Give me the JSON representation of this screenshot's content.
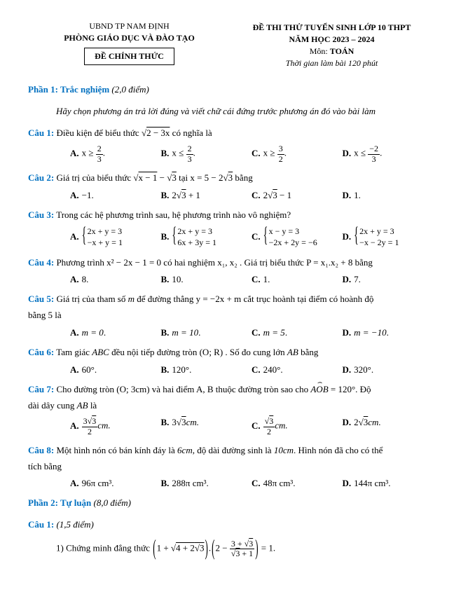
{
  "header": {
    "left1": "UBND TP NAM ĐỊNH",
    "left2": "PHÒNG GIÁO DỤC VÀ ĐÀO TẠO",
    "box": "ĐỀ CHÍNH THỨC",
    "right1": "ĐỀ THI THỬ TUYỂN SINH LỚP 10 THPT",
    "right2": "NĂM HỌC 2023 – 2024",
    "right3": "Môn: ",
    "right3b": "TOÁN",
    "right4": "Thời gian làm bài 120 phút"
  },
  "phan1": {
    "label": "Phần 1: Trắc nghiệm",
    "score": " (2,0 điểm)"
  },
  "instr": "Hãy chọn phương án trả lời đúng và viết chữ cái đứng trước phương án đó vào bài làm",
  "q1": {
    "label": "Câu 1:",
    "text_a": " Điều kiện để biểu thức ",
    "rad": "2 − 3x",
    "text_b": "  có nghĩa là"
  },
  "q1o": {
    "A_lhs": "x ≥",
    "A_num": "2",
    "A_den": "3",
    "B_lhs": "x ≤",
    "B_num": "2",
    "B_den": "3",
    "C_lhs": "x ≥",
    "C_num": "3",
    "C_den": "2",
    "D_lhs": "x ≤",
    "D_num": "−2",
    "D_den": "3"
  },
  "q2": {
    "label": "Câu 2:",
    "text_a": " Giá trị của biểu thức ",
    "r1": "x − 1",
    "minus": " − ",
    "r2": "3",
    "text_b": "  tại  x = 5 − 2",
    "r3": "3",
    "text_c": "  bằng"
  },
  "q2o": {
    "A": "−1",
    "B_a": "2",
    "B_r": "3",
    "B_b": " + 1",
    "C_a": "2",
    "C_r": "3",
    "C_b": " − 1",
    "D": "1"
  },
  "q3": {
    "label": "Câu 3:",
    "text": " Trong các hệ phương trình sau, hệ phương trình nào vô nghiệm?"
  },
  "q3o": {
    "A1": "2x + y = 3",
    "A2": "−x + y = 1",
    "B1": "2x + y = 3",
    "B2": "6x + 3y = 1",
    "C1": "x − y = 3",
    "C2": "−2x + 2y = −6",
    "D1": "2x + y = 3",
    "D2": "−x − 2y = 1"
  },
  "q4": {
    "label": "Câu 4:",
    "text_a": " Phương trình  x² − 2x − 1 = 0  có hai nghiệm  x₁, x₂ . Giá trị biểu thức  P = x₁.x₂ + 8  bằng"
  },
  "q4o": {
    "A": "8",
    "B": "10",
    "C": "1",
    "D": "7"
  },
  "q5": {
    "label": "Câu 5:",
    "text_a": " Giá trị của tham số ",
    "m": "m",
    "text_b": " để đường thẳng  y = −2x + m  cắt trục hoành tại điểm có hoành độ",
    "text_c": "bằng 5 là"
  },
  "q5o": {
    "A": "m = 0",
    "B": "m = 10",
    "C": "m = 5",
    "D": "m = −10"
  },
  "q6": {
    "label": "Câu 6:",
    "text_a": " Tam giác ",
    "abc": "ABC",
    "text_b": " đều nội tiếp đường tròn (O; R) . Số đo cung lớn ",
    "ab": "AB",
    "text_c": " bằng"
  },
  "q6o": {
    "A": "60°",
    "B": "120°",
    "C": "240°",
    "D": "320°"
  },
  "q7": {
    "label": "Câu 7:",
    "text_a": " Cho đường tròn (O; 3cm)  và hai điểm  A, B  thuộc đường tròn sao cho ",
    "aob": "AOB",
    "text_b": " = 120°.  Độ",
    "text_c": "dài dây cung ",
    "ab": "AB",
    "text_d": " là"
  },
  "q7o": {
    "A_num_a": "3",
    "A_num_r": "3",
    "A_den": "2",
    "A_unit": "cm.",
    "B_a": "3",
    "B_r": "3",
    "B_unit": "cm.",
    "C_num_r": "3",
    "C_den": "2",
    "C_unit": "cm.",
    "D_a": "2",
    "D_r": "3",
    "D_unit": "cm."
  },
  "q8": {
    "label": "Câu 8:",
    "text_a": " Một hình nón có bán kính đáy là ",
    "i1": "6cm",
    "text_b": ", độ dài đường sinh là ",
    "i2": "10cm",
    "text_c": ". Hình nón đã cho có thể",
    "text_d": "tích bằng"
  },
  "q8o": {
    "A": "96π cm³",
    "B": "288π cm³",
    "C": "48π cm³",
    "D": "144π cm³"
  },
  "phan2": {
    "label": "Phần 2: Tự luận",
    "score": " (8,0 điểm)"
  },
  "tq1": {
    "label": "Câu 1:",
    "score": " (1,5 điểm)"
  },
  "tq1_1": {
    "pre": "1) Chứng minh đẳng thức ",
    "l1": "1 + ",
    "l_inner": "4 + 2",
    "l_r": "3",
    "dot": ".",
    "r_a": "2 − ",
    "r_num_a": "3 + ",
    "r_num_r": "3",
    "r_den_r": "3",
    "r_den_b": " + 1",
    "eq": " = 1."
  },
  "labels": {
    "A": "A.",
    "B": "B.",
    "C": "C.",
    "D": "D.",
    "dotend": "."
  }
}
